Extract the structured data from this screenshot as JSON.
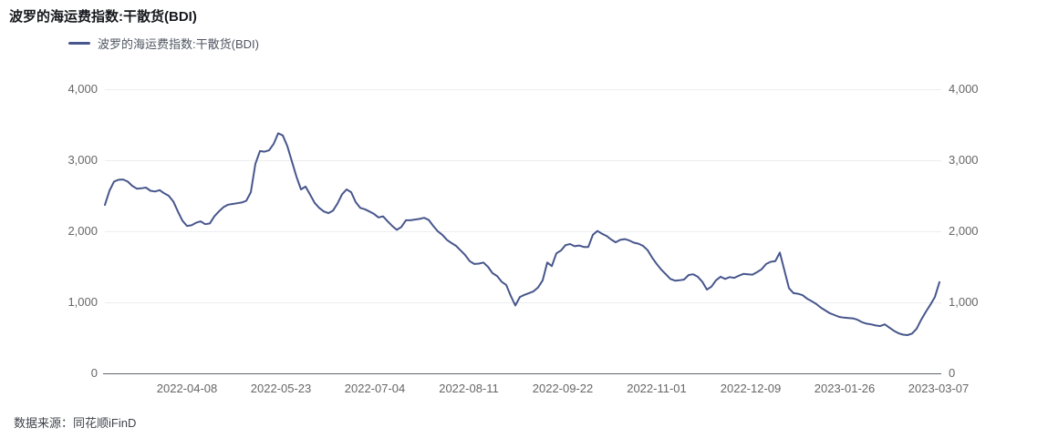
{
  "header": {
    "title": "波罗的海运费指数:干散货(BDI)"
  },
  "legend": {
    "label": "波罗的海运费指数:干散货(BDI)"
  },
  "footer": {
    "source": "数据来源：同花顺iFinD"
  },
  "colors": {
    "line": "#47568C",
    "title_text": "#16181D",
    "legend_text": "#4F5560",
    "axis_text": "#666666",
    "source_text": "#3F434B",
    "gridline": "#EBEDF0",
    "axis_line": "#60666F",
    "background": "#FFFFFF"
  },
  "chart_data": {
    "type": "line",
    "title": "波罗的海运费指数:干散货(BDI)",
    "legend_position": "top-left",
    "grid": "horizontal-only",
    "ylim": [
      0,
      4000
    ],
    "y_tick_values": [
      4000,
      3000,
      2000,
      1000,
      0
    ],
    "y_tick_labels": [
      "4,000",
      "3,000",
      "2,000",
      "1,000",
      "0"
    ],
    "y_axis_sides": [
      "left",
      "right"
    ],
    "x_tick_labels": [
      "2022-04-08",
      "2022-05-23",
      "2022-07-04",
      "2022-08-11",
      "2022-09-22",
      "2022-11-01",
      "2022-12-09",
      "2023-01-26",
      "2023-03-07"
    ],
    "series": [
      {
        "name": "波罗的海运费指数:干散货(BDI)",
        "color": "#47568C",
        "note": "daily index values, evenly spaced samples from chart start (early 2022-03) to 2023-03-07",
        "values": [
          2370,
          2570,
          2700,
          2725,
          2730,
          2700,
          2640,
          2600,
          2605,
          2615,
          2570,
          2560,
          2580,
          2535,
          2500,
          2420,
          2280,
          2150,
          2075,
          2085,
          2120,
          2140,
          2100,
          2110,
          2210,
          2280,
          2340,
          2375,
          2385,
          2395,
          2405,
          2430,
          2550,
          2950,
          3130,
          3120,
          3140,
          3230,
          3380,
          3350,
          3200,
          2985,
          2770,
          2590,
          2630,
          2515,
          2400,
          2330,
          2280,
          2255,
          2290,
          2390,
          2520,
          2590,
          2550,
          2410,
          2330,
          2310,
          2280,
          2245,
          2195,
          2210,
          2140,
          2075,
          2020,
          2060,
          2155,
          2155,
          2165,
          2175,
          2190,
          2160,
          2075,
          2000,
          1950,
          1880,
          1835,
          1795,
          1730,
          1665,
          1580,
          1540,
          1545,
          1560,
          1500,
          1410,
          1370,
          1290,
          1245,
          1090,
          955,
          1075,
          1105,
          1130,
          1155,
          1210,
          1310,
          1560,
          1510,
          1690,
          1730,
          1805,
          1820,
          1790,
          1800,
          1780,
          1780,
          1950,
          2005,
          1965,
          1935,
          1885,
          1845,
          1880,
          1890,
          1870,
          1840,
          1825,
          1795,
          1735,
          1630,
          1540,
          1460,
          1395,
          1330,
          1305,
          1310,
          1320,
          1385,
          1395,
          1360,
          1290,
          1180,
          1220,
          1310,
          1360,
          1330,
          1355,
          1345,
          1375,
          1400,
          1395,
          1390,
          1425,
          1465,
          1540,
          1570,
          1580,
          1700,
          1450,
          1200,
          1130,
          1120,
          1100,
          1050,
          1015,
          975,
          925,
          885,
          845,
          820,
          795,
          785,
          780,
          775,
          755,
          720,
          700,
          690,
          675,
          665,
          690,
          645,
          600,
          565,
          545,
          538,
          560,
          630,
          755,
          865,
          965,
          1075,
          1285
        ]
      }
    ]
  }
}
